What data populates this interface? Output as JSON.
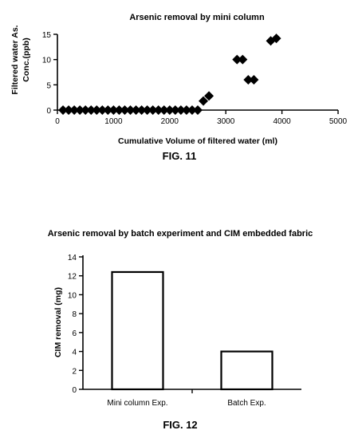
{
  "chart_data": [
    {
      "type": "scatter",
      "title": "Arsenic removal by mini column",
      "xlabel": "Cumulative Volume of filtered water (ml)",
      "ylabel": [
        "Filtered water As.",
        "Conc.(ppb)"
      ],
      "xlim": [
        0,
        5000
      ],
      "ylim": [
        0,
        15
      ],
      "xticks": [
        0,
        1000,
        2000,
        3000,
        4000,
        5000
      ],
      "yticks": [
        0,
        5,
        10,
        15
      ],
      "marker": "diamond",
      "color": "#000000",
      "x": [
        100,
        200,
        300,
        400,
        500,
        600,
        700,
        800,
        900,
        1000,
        1100,
        1200,
        1300,
        1400,
        1500,
        1600,
        1700,
        1800,
        1900,
        2000,
        2100,
        2200,
        2300,
        2400,
        2500,
        2600,
        2700,
        3200,
        3300,
        3400,
        3500,
        3800,
        3900
      ],
      "y": [
        0,
        0,
        0,
        0,
        0,
        0,
        0,
        0,
        0,
        0,
        0,
        0,
        0,
        0,
        0,
        0,
        0,
        0,
        0,
        0,
        0,
        0,
        0,
        0,
        0,
        1.8,
        2.8,
        10,
        10,
        6,
        6,
        13.7,
        14.2
      ],
      "caption": "FIG. 11"
    },
    {
      "type": "bar",
      "title": "Arsenic removal by batch experiment and CIM embedded fabric",
      "xlabel": "",
      "ylabel": "CIM removal (mg)",
      "categories": [
        "Mini column Exp.",
        "Batch Exp."
      ],
      "values": [
        12.4,
        4.0
      ],
      "ylim": [
        0,
        14
      ],
      "yticks": [
        0,
        2,
        4,
        6,
        8,
        10,
        12,
        14
      ],
      "color": "#ffffff",
      "caption": "FIG. 12"
    }
  ]
}
